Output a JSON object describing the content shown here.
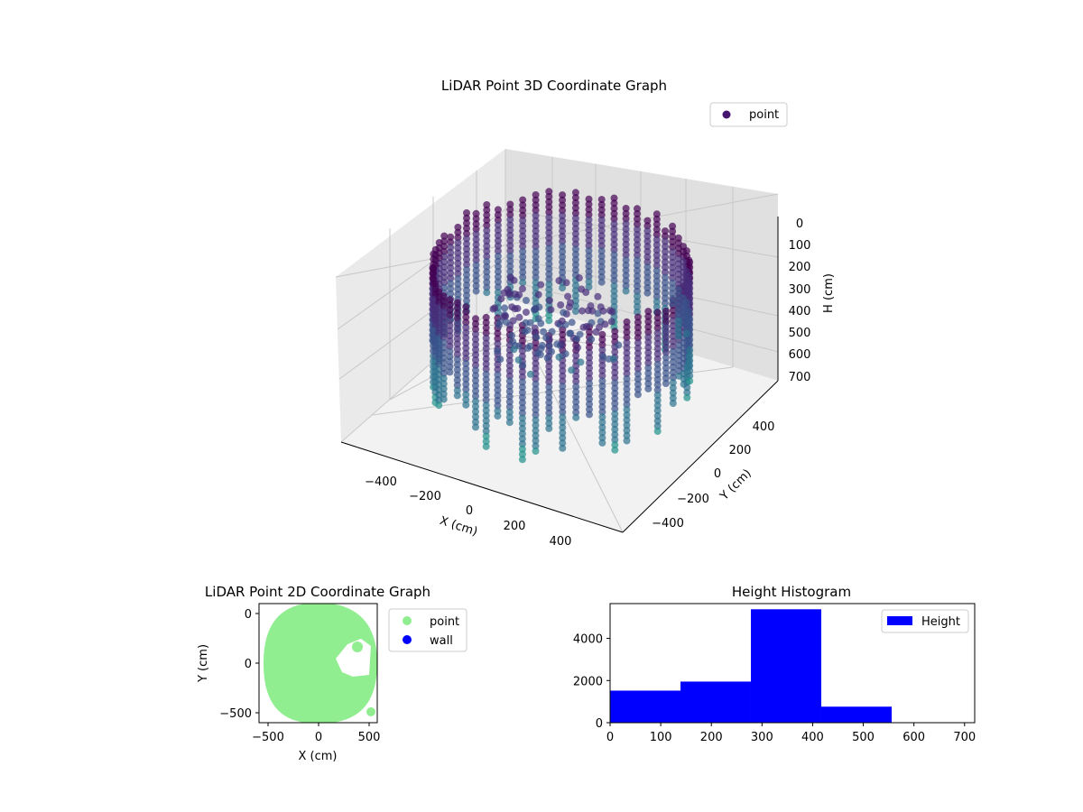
{
  "chart_data": [
    {
      "type": "scatter",
      "projection": "3d",
      "title": "LiDAR Point 3D Coordinate Graph",
      "xlabel": "X (cm)",
      "ylabel": "Y (cm)",
      "zlabel": "H (cm)",
      "xticks": [
        "−400",
        "−200",
        "0",
        "200",
        "400"
      ],
      "yticks": [
        "−400",
        "−200",
        "0",
        "200",
        "400"
      ],
      "zticks": [
        "0",
        "100",
        "200",
        "300",
        "400",
        "500",
        "600",
        "700"
      ],
      "xlim": [
        -560,
        560
      ],
      "ylim": [
        -560,
        560
      ],
      "zlim": [
        0,
        700
      ],
      "z_inverted": true,
      "legend": {
        "entries": [
          "point"
        ],
        "placement": "top-right"
      },
      "colormap": [
        "#440154",
        "#3b528b",
        "#2c728e",
        "#21918c"
      ],
      "description_series": {
        "name": "point",
        "ring_radius_approx": 450,
        "height_range": [
          0,
          650
        ]
      }
    },
    {
      "type": "scatter",
      "title": "LiDAR Point 2D Coordinate Graph",
      "xlabel": "X (cm)",
      "ylabel": "Y (cm)",
      "xticks": [
        "−500",
        "0",
        "500"
      ],
      "yticks": [
        "−500",
        "0",
        "500"
      ],
      "xlim": [
        -580,
        580
      ],
      "ylim": [
        -600,
        600
      ],
      "legend": {
        "entries": [
          "point",
          "wall"
        ],
        "placement": "outside-right"
      },
      "series": [
        {
          "name": "point",
          "color": "#90ee90"
        },
        {
          "name": "wall",
          "color": "#0000ff"
        }
      ]
    },
    {
      "type": "bar",
      "subtype": "histogram",
      "title": "Height Histogram",
      "xticks": [
        "0",
        "100",
        "200",
        "300",
        "400",
        "500",
        "600",
        "700"
      ],
      "yticks": [
        "0",
        "2000",
        "4000"
      ],
      "xlim": [
        0,
        720
      ],
      "ylim": [
        0,
        5650
      ],
      "legend": {
        "entries": [
          "Height"
        ],
        "placement": "top-right"
      },
      "series": [
        {
          "name": "Height",
          "color": "#0000ff",
          "bin_edges": [
            0,
            139,
            278,
            417,
            556,
            695
          ],
          "values": [
            1520,
            1950,
            5380,
            760,
            0
          ]
        }
      ]
    }
  ]
}
